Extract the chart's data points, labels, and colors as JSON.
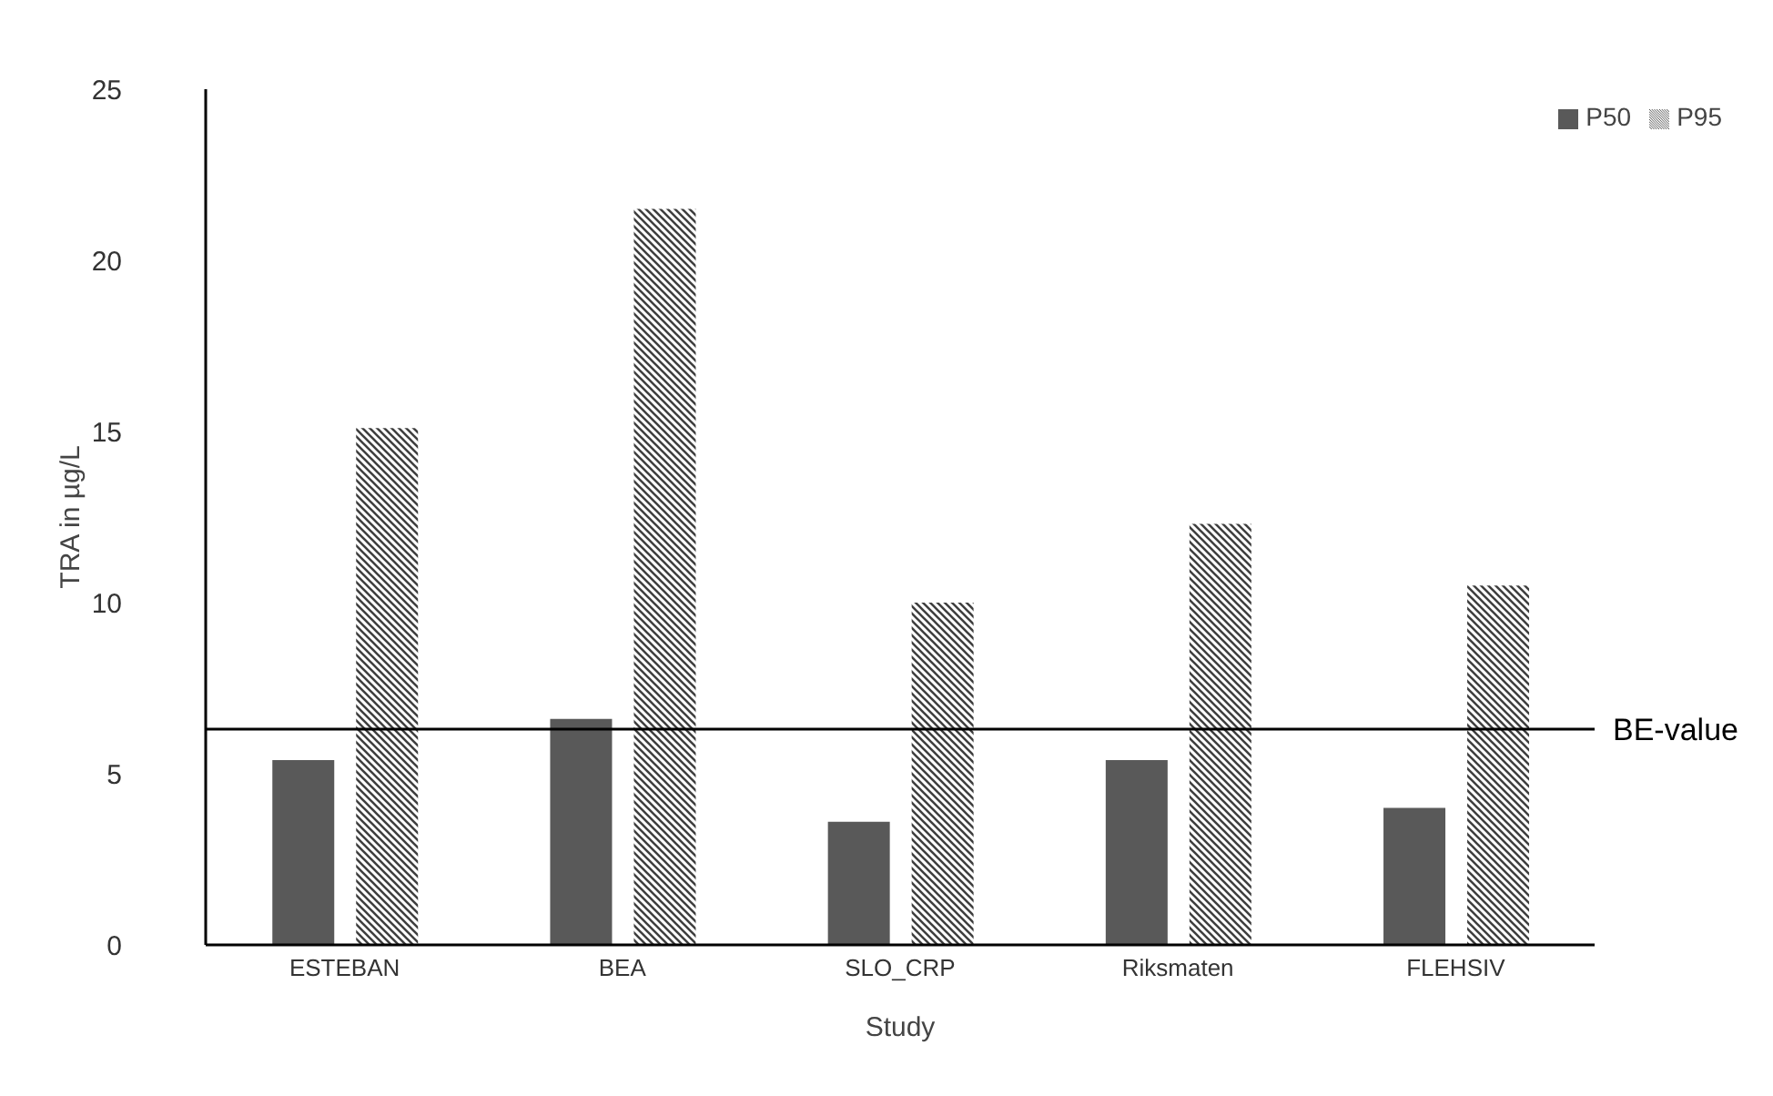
{
  "chart_data": {
    "type": "bar",
    "xlabel": "Study",
    "ylabel": "TRA in µg/L",
    "categories": [
      "ESTEBAN",
      "BEA",
      "SLO_CRP",
      "Riksmaten",
      "FLEHSIV"
    ],
    "series": [
      {
        "name": "P50",
        "color": "#595959",
        "values": [
          5.4,
          6.6,
          3.6,
          5.4,
          4.0
        ]
      },
      {
        "name": "P95",
        "color": "#3f3f3f",
        "values": [
          15.1,
          21.5,
          10.0,
          12.3,
          10.5
        ]
      }
    ],
    "ylim": [
      0,
      25
    ],
    "yticks": [
      0,
      5,
      10,
      15,
      20,
      25
    ],
    "grid": false,
    "legend": "top right",
    "ref_lines": [
      {
        "axis": "y",
        "value": 6.3,
        "label": "BE-value",
        "color": "#000000"
      }
    ]
  }
}
